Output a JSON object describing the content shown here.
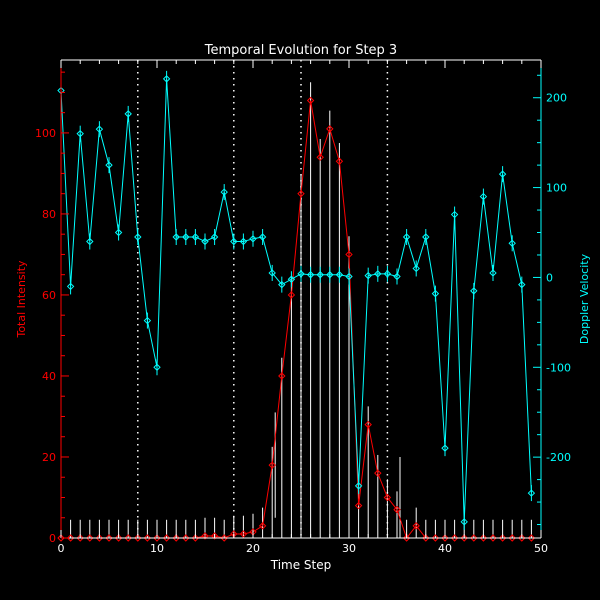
{
  "chart_data": {
    "type": "line",
    "title": "Temporal Evolution for Step 3",
    "xlabel": "Time Step",
    "x_range": [
      0,
      50
    ],
    "x_ticks": [
      0,
      10,
      20,
      30,
      40,
      50
    ],
    "y_left": {
      "label": "Total Intensity",
      "range": [
        0,
        118
      ],
      "ticks": [
        0,
        20,
        40,
        60,
        80,
        100
      ],
      "color": "#ff0000"
    },
    "y_right": {
      "label": "Doppler Velocity",
      "range": [
        -290,
        242
      ],
      "ticks": [
        -200,
        -100,
        0,
        100,
        200
      ],
      "color": "#00ffff"
    },
    "vertical_markers": [
      8,
      18,
      25,
      34
    ],
    "series": [
      {
        "name": "Total Intensity",
        "axis": "left",
        "color": "#ff0000",
        "x": [
          0,
          1,
          2,
          3,
          4,
          5,
          6,
          7,
          8,
          9,
          10,
          11,
          12,
          13,
          14,
          15,
          16,
          17,
          18,
          19,
          20,
          21,
          22,
          23,
          24,
          25,
          26,
          27,
          28,
          29,
          30,
          31,
          32,
          33,
          34,
          35,
          36,
          37,
          38,
          39,
          40,
          41,
          42,
          43,
          44,
          45,
          46,
          47,
          48,
          49
        ],
        "values": [
          0,
          0,
          0,
          0,
          0,
          0,
          0,
          0,
          0,
          0,
          0,
          0,
          0,
          0,
          0,
          0.5,
          0.5,
          0,
          1,
          1,
          1.5,
          3,
          18,
          40,
          60,
          85,
          108,
          94,
          101,
          93,
          70,
          8,
          28,
          16,
          10,
          7,
          0,
          3,
          0,
          0,
          0,
          0,
          0,
          0,
          0,
          0,
          0,
          0,
          0,
          0
        ]
      },
      {
        "name": "Doppler Velocity",
        "axis": "right",
        "color": "#00ffff",
        "x": [
          0,
          1,
          2,
          3,
          4,
          5,
          6,
          7,
          8,
          9,
          10,
          11,
          12,
          13,
          14,
          15,
          16,
          17,
          18,
          19,
          20,
          21,
          22,
          23,
          24,
          25,
          26,
          27,
          28,
          29,
          30,
          31,
          32,
          33,
          34,
          35,
          36,
          37,
          38,
          39,
          40,
          41,
          42,
          43,
          44,
          45,
          46,
          47,
          48,
          49
        ],
        "values": [
          208,
          -10,
          160,
          40,
          165,
          125,
          50,
          182,
          45,
          -48,
          -100,
          221,
          45,
          45,
          45,
          40,
          45,
          95,
          40,
          40,
          43,
          45,
          5,
          -8,
          -2,
          4,
          3,
          3,
          3,
          3,
          1,
          -232,
          2,
          4,
          4,
          1,
          45,
          10,
          45,
          -18,
          -190,
          70,
          -272,
          -15,
          90,
          5,
          115,
          38,
          -8,
          -240
        ]
      }
    ],
    "error_bars": [
      {
        "x": 0,
        "half": 4.5
      },
      {
        "x": 1,
        "half": 4.5
      },
      {
        "x": 2,
        "half": 4.5
      },
      {
        "x": 3,
        "half": 4.5
      },
      {
        "x": 4,
        "half": 4.5
      },
      {
        "x": 5,
        "half": 4.5
      },
      {
        "x": 6,
        "half": 4.5
      },
      {
        "x": 7,
        "half": 4.5
      },
      {
        "x": 8,
        "half": 4.5
      },
      {
        "x": 9,
        "half": 4.5
      },
      {
        "x": 10,
        "half": 4.5
      },
      {
        "x": 11,
        "half": 4.5
      },
      {
        "x": 12,
        "half": 4.5
      },
      {
        "x": 13,
        "half": 4.5
      },
      {
        "x": 14,
        "half": 4.5
      },
      {
        "x": 15,
        "half": 4.5
      },
      {
        "x": 16,
        "half": 4.5
      },
      {
        "x": 17,
        "half": 4.5
      },
      {
        "x": 18,
        "half": 4.5
      },
      {
        "x": 19,
        "half": 4.5
      },
      {
        "x": 20,
        "half": 4.5
      },
      {
        "x": 21,
        "half": 4.5
      },
      {
        "x": 22,
        "half": 4.5
      },
      {
        "x": 23,
        "half": 4.5
      },
      {
        "x": 24,
        "half": 4.5
      },
      {
        "x": 25,
        "half": 4.5
      },
      {
        "x": 26,
        "half": 4.5
      },
      {
        "x": 27,
        "half": 4.5
      },
      {
        "x": 28,
        "half": 4.5
      },
      {
        "x": 29,
        "half": 4.5
      },
      {
        "x": 30,
        "half": 4.5
      },
      {
        "x": 31,
        "half": 4.5
      },
      {
        "x": 32,
        "half": 4.5
      },
      {
        "x": 33,
        "half": 4.5
      },
      {
        "x": 34,
        "half": 4.5
      },
      {
        "x": 35,
        "half": 4.5
      },
      {
        "x": 36,
        "half": 4.5
      },
      {
        "x": 37,
        "half": 4.5
      },
      {
        "x": 38,
        "half": 4.5
      },
      {
        "x": 39,
        "half": 4.5
      },
      {
        "x": 40,
        "half": 4.5
      },
      {
        "x": 41,
        "half": 4.5
      },
      {
        "x": 42,
        "half": 4.5
      },
      {
        "x": 43,
        "half": 4.5
      },
      {
        "x": 44,
        "half": 4.5
      },
      {
        "x": 45,
        "half": 4.5
      },
      {
        "x": 46,
        "half": 4.5
      },
      {
        "x": 47,
        "half": 4.5
      },
      {
        "x": 48,
        "half": 4.5
      },
      {
        "x": 49,
        "half": 4.5
      }
    ]
  }
}
